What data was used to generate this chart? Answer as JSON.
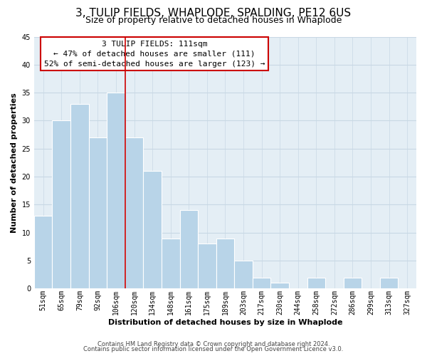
{
  "title": "3, TULIP FIELDS, WHAPLODE, SPALDING, PE12 6US",
  "subtitle": "Size of property relative to detached houses in Whaplode",
  "xlabel": "Distribution of detached houses by size in Whaplode",
  "ylabel": "Number of detached properties",
  "bar_labels": [
    "51sqm",
    "65sqm",
    "79sqm",
    "92sqm",
    "106sqm",
    "120sqm",
    "134sqm",
    "148sqm",
    "161sqm",
    "175sqm",
    "189sqm",
    "203sqm",
    "217sqm",
    "230sqm",
    "244sqm",
    "258sqm",
    "272sqm",
    "286sqm",
    "299sqm",
    "313sqm",
    "327sqm"
  ],
  "bar_values": [
    13,
    30,
    33,
    27,
    35,
    27,
    21,
    9,
    14,
    8,
    9,
    5,
    2,
    1,
    0,
    2,
    0,
    2,
    0,
    2,
    0
  ],
  "bar_color": "#b8d4e8",
  "ylim": [
    0,
    45
  ],
  "yticks": [
    0,
    5,
    10,
    15,
    20,
    25,
    30,
    35,
    40,
    45
  ],
  "red_line_x": 4.5,
  "annotation_title": "3 TULIP FIELDS: 111sqm",
  "annotation_line1": "← 47% of detached houses are smaller (111)",
  "annotation_line2": "52% of semi-detached houses are larger (123) →",
  "footer_line1": "Contains HM Land Registry data © Crown copyright and database right 2024.",
  "footer_line2": "Contains public sector information licensed under the Open Government Licence v3.0.",
  "background_color": "#ffffff",
  "plot_bg_color": "#e4eef5",
  "grid_color": "#c8d8e4",
  "title_fontsize": 11,
  "subtitle_fontsize": 9,
  "axis_label_fontsize": 8,
  "tick_fontsize": 7,
  "annotation_fontsize": 8,
  "footer_fontsize": 6
}
